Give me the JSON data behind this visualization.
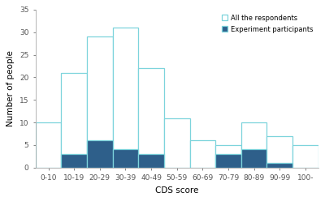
{
  "categories": [
    "0-10",
    "10-19",
    "20-29",
    "30-39",
    "40-49",
    "50-59",
    "60-69",
    "70-79",
    "80-89",
    "90-99",
    "100-"
  ],
  "all_respondents": [
    10,
    21,
    29,
    31,
    22,
    11,
    6,
    5,
    10,
    7,
    5
  ],
  "experiment_participants": [
    0,
    3,
    6,
    4,
    3,
    0,
    0,
    3,
    4,
    1,
    0
  ],
  "color_all_face": "#ffffff",
  "color_all_edge": "#7dd4dc",
  "color_exp_face": "#2e5f8a",
  "color_exp_edge": "#7dd4dc",
  "xlabel": "CDS score",
  "ylabel": "Number of people",
  "ylim": [
    0,
    35
  ],
  "yticks": [
    0,
    5,
    10,
    15,
    20,
    25,
    30,
    35
  ],
  "legend_all": "All the respondents",
  "legend_exp": "Experiment participants",
  "background_color": "#ffffff",
  "spine_color": "#aaaaaa",
  "tick_color": "#555555",
  "label_fontsize": 7.5,
  "tick_fontsize": 6.5
}
